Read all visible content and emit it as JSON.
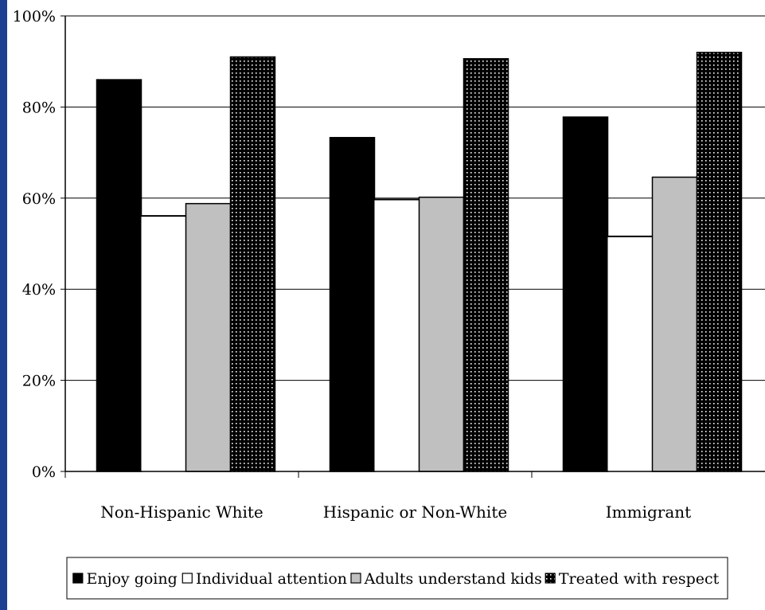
{
  "edge_color": "#1c3f94",
  "chart_data": {
    "type": "bar",
    "categories": [
      "Non-Hispanic White",
      "Hispanic or Non-White",
      "Immigrant"
    ],
    "series": [
      {
        "name": "Enjoy going",
        "values": [
          86,
          73.3,
          77.8
        ],
        "fill": "#000000",
        "pattern": "solid"
      },
      {
        "name": "Individual attention",
        "values": [
          56.1,
          59.7,
          51.6
        ],
        "fill": "#ffffff",
        "pattern": "open"
      },
      {
        "name": "Adults understand kids",
        "values": [
          58.8,
          60.2,
          64.6
        ],
        "fill": "#c0c0c0",
        "pattern": "solid"
      },
      {
        "name": "Treated with respect",
        "values": [
          91,
          90.6,
          92
        ],
        "fill": "#000000",
        "pattern": "dotted"
      }
    ],
    "yticks": [
      "0%",
      "20%",
      "40%",
      "60%",
      "80%",
      "100%"
    ],
    "ylim": [
      0,
      100
    ],
    "grid": true,
    "legend_position": "bottom",
    "title": "",
    "xlabel": "",
    "ylabel": ""
  }
}
